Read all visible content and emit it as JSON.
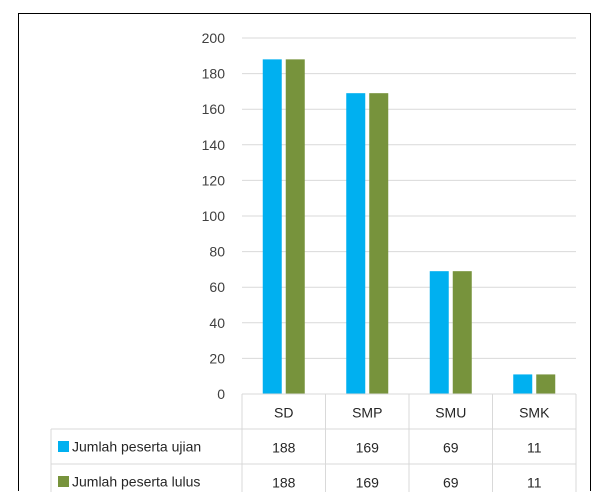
{
  "chart_data": {
    "type": "bar",
    "title": "",
    "xlabel": "",
    "ylabel": "",
    "categories": [
      "SD",
      "SMP",
      "SMU",
      "SMK"
    ],
    "series": [
      {
        "name": "Jumlah peserta ujian",
        "values": [
          188,
          169,
          69,
          11
        ],
        "color": "#00B0F0"
      },
      {
        "name": "Jumlah peserta lulus",
        "values": [
          188,
          169,
          69,
          11
        ],
        "color": "#77933C"
      }
    ],
    "ylim": [
      0,
      200
    ],
    "yticks": [
      "0",
      "20",
      "40",
      "60",
      "80",
      "100",
      "120",
      "140",
      "160",
      "180",
      "200"
    ],
    "grid": true,
    "legend": "data-table"
  }
}
